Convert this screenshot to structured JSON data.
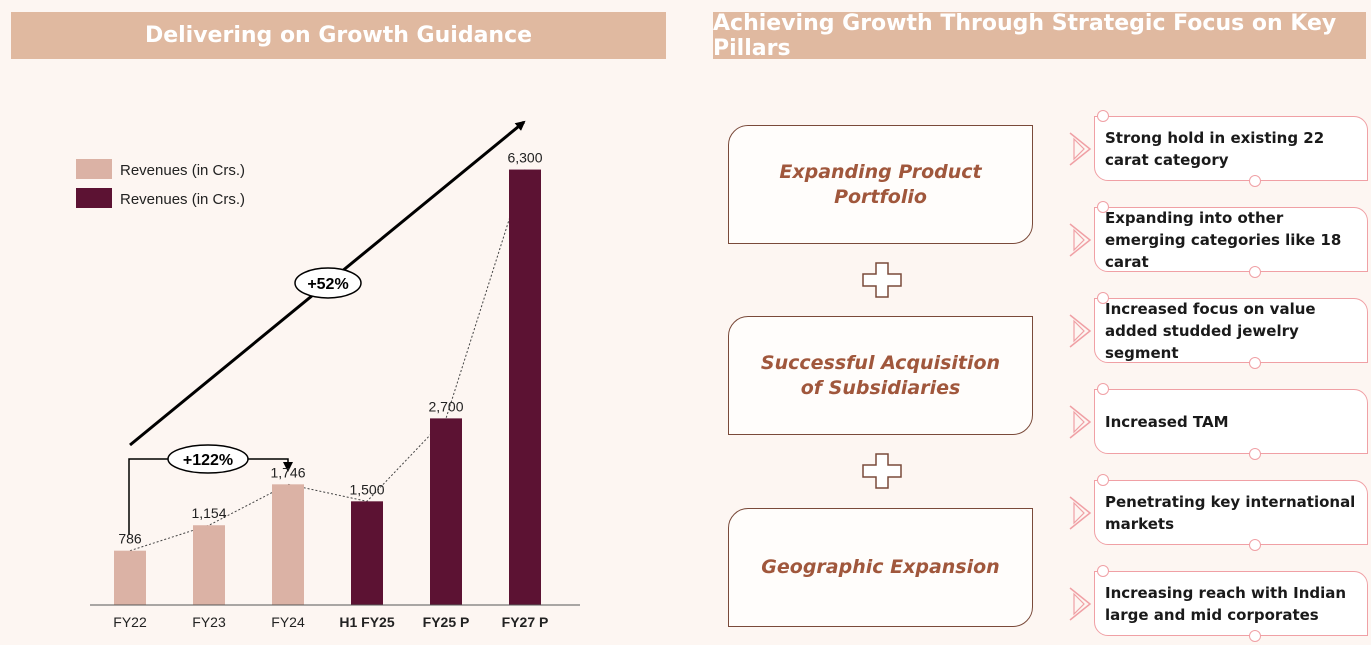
{
  "left_panel": {
    "title": "Delivering on Growth Guidance"
  },
  "right_panel": {
    "title": "Achieving Growth Through Strategic Focus on Key Pillars",
    "pillars": [
      {
        "label": "Expanding Product Portfolio"
      },
      {
        "label": "Successful Acquisition of Subsidiaries"
      },
      {
        "label": "Geographic Expansion"
      }
    ],
    "bullets": [
      {
        "text": "Strong hold in existing 22 carat category"
      },
      {
        "text": "Expanding into other emerging categories like 18 carat"
      },
      {
        "text": "Increased focus on value added studded jewelry segment"
      },
      {
        "text": "Increased TAM"
      },
      {
        "text": "Penetrating key international markets"
      },
      {
        "text": "Increasing reach with Indian large and mid corporates"
      }
    ]
  },
  "chart_data": {
    "type": "bar",
    "categories": [
      "FY22",
      "FY23",
      "FY24",
      "H1 FY25",
      "FY25 P",
      "FY27 P"
    ],
    "category_bold": [
      false,
      false,
      false,
      true,
      true,
      true
    ],
    "values": [
      786,
      1154,
      1746,
      1500,
      2700,
      6300
    ],
    "value_labels": [
      "786",
      "1,154",
      "1,746",
      "1,500",
      "2,700",
      "6,300"
    ],
    "series_index": [
      0,
      0,
      0,
      1,
      1,
      1
    ],
    "series": [
      {
        "name": "Revenues (in Crs.)",
        "color": "#dbb2a5"
      },
      {
        "name": "Revenues (in Crs.)",
        "color": "#5c1233"
      }
    ],
    "ylim": [
      0,
      6800
    ],
    "legend": "top-left",
    "grid": false,
    "annotations": [
      {
        "label": "+52%",
        "type": "growth-arrow"
      },
      {
        "label": "+122%",
        "type": "bracket-arrow",
        "from": "FY22",
        "to": "FY24"
      }
    ]
  },
  "colors": {
    "header_bg": "#e0b9a0",
    "accent_brown": "#a0573c",
    "bullet_border": "#f0a0a5"
  }
}
